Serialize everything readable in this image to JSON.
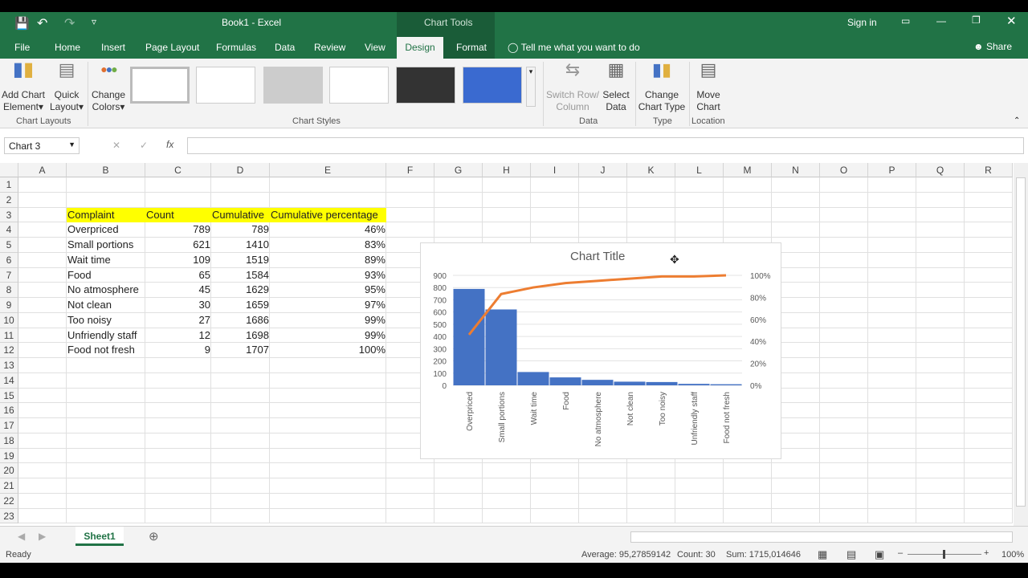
{
  "window": {
    "title": "Book1  -  Excel",
    "context_tab": "Chart Tools",
    "sign_in": "Sign in",
    "share": "Share"
  },
  "tabs": [
    "File",
    "Home",
    "Insert",
    "Page Layout",
    "Formulas",
    "Data",
    "Review",
    "View",
    "Design",
    "Format"
  ],
  "tell_me": "Tell me what you want to do",
  "ribbon": {
    "add_chart_element": [
      "Add Chart",
      "Element"
    ],
    "quick_layout": [
      "Quick",
      "Layout"
    ],
    "change_colors": [
      "Change",
      "Colors"
    ],
    "group_chart_layouts": "Chart Layouts",
    "group_chart_styles": "Chart Styles",
    "switch_row_column": [
      "Switch Row/",
      "Column"
    ],
    "select_data": [
      "Select",
      "Data"
    ],
    "group_data": "Data",
    "change_chart_type": [
      "Change",
      "Chart Type"
    ],
    "group_type": "Type",
    "move_chart": [
      "Move",
      "Chart"
    ],
    "group_location": "Location"
  },
  "formula_bar": {
    "name_box": "Chart 3",
    "fx": "fx",
    "value": ""
  },
  "columns": [
    "A",
    "B",
    "C",
    "D",
    "E",
    "F",
    "G",
    "H",
    "I",
    "J",
    "K",
    "L",
    "M",
    "N",
    "O",
    "P",
    "Q",
    "R"
  ],
  "rows": [
    "1",
    "2",
    "3",
    "4",
    "5",
    "6",
    "7",
    "8",
    "9",
    "10",
    "11",
    "12",
    "13",
    "14",
    "15",
    "16",
    "17",
    "18",
    "19",
    "20",
    "21",
    "22",
    "23"
  ],
  "table": {
    "headers": [
      "Complaint",
      "Count",
      "Cumulative",
      "Cumulative percentage"
    ],
    "rows": [
      [
        "Overpriced",
        "789",
        "789",
        "46%"
      ],
      [
        "Small portions",
        "621",
        "1410",
        "83%"
      ],
      [
        "Wait time",
        "109",
        "1519",
        "89%"
      ],
      [
        "Food",
        "65",
        "1584",
        "93%"
      ],
      [
        "No atmosphere",
        "45",
        "1629",
        "95%"
      ],
      [
        "Not clean",
        "30",
        "1659",
        "97%"
      ],
      [
        "Too noisy",
        "27",
        "1686",
        "99%"
      ],
      [
        "Unfriendly staff",
        "12",
        "1698",
        "99%"
      ],
      [
        "Food not fresh",
        "9",
        "1707",
        "100%"
      ]
    ]
  },
  "chart_data": {
    "type": "bar",
    "title": "Chart Title",
    "categories": [
      "Overpriced",
      "Small portions",
      "Wait time",
      "Food",
      "No atmosphere",
      "Not clean",
      "Too noisy",
      "Unfriendly staff",
      "Food not fresh"
    ],
    "series": [
      {
        "type": "bar",
        "axis": "left",
        "values": [
          789,
          621,
          109,
          65,
          45,
          30,
          27,
          12,
          9
        ],
        "color": "#4472c4"
      },
      {
        "type": "line",
        "axis": "right",
        "values": [
          46,
          83,
          89,
          93,
          95,
          97,
          99,
          99,
          100
        ],
        "color": "#ed7d31"
      }
    ],
    "ylim": [
      0,
      900
    ],
    "yticks": [
      "0",
      "100",
      "200",
      "300",
      "400",
      "500",
      "600",
      "700",
      "800",
      "900"
    ],
    "y2lim": [
      0,
      100
    ],
    "y2ticks": [
      "0%",
      "20%",
      "40%",
      "60%",
      "80%",
      "100%"
    ],
    "grid": true,
    "legend": "none"
  },
  "sheets": [
    "Sheet1"
  ],
  "status": {
    "ready": "Ready",
    "average": "Average: 95,27859142",
    "count": "Count: 30",
    "sum": "Sum: 1715,014646",
    "zoom": "100%"
  }
}
